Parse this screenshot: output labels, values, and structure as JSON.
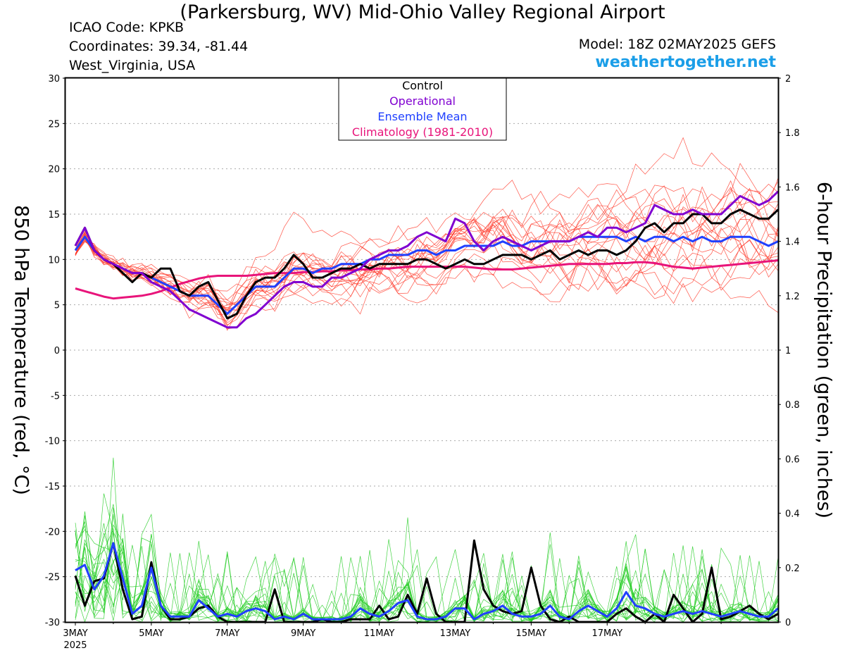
{
  "header": {
    "title": "(Parkersburg, WV) Mid-Ohio Valley Regional Airport",
    "icao": "ICAO Code: KPKB",
    "coordinates": "Coordinates: 39.34, -81.44",
    "region": "West_Virginia, USA",
    "model": "Model: 18Z 02MAY2025 GEFS",
    "site": "weathertogether.net"
  },
  "colors": {
    "control": "#000000",
    "operational": "#8000d0",
    "ensemble_mean": "#2040ff",
    "climatology": "#e8147a",
    "members_temp": "#ff3a2a",
    "members_precip": "#22cc22",
    "site": "#1a9ee8"
  },
  "chart_data": {
    "type": "line",
    "ylabel_left": "850 hPa Temperature (red, °C)",
    "ylabel_right": "6-hour Precipitation (green, inches)",
    "ylim_left": [
      -30,
      30
    ],
    "ylim_right": [
      0,
      2
    ],
    "yticks_left": [
      "30",
      "25",
      "20",
      "15",
      "10",
      "5",
      "0",
      "-5",
      "-10",
      "-15",
      "-20",
      "-25",
      "-30"
    ],
    "yticks_right": [
      "2",
      "1.8",
      "1.6",
      "1.4",
      "1.2",
      "1",
      "0.8",
      "0.6",
      "0.4",
      "0.2",
      "0"
    ],
    "xticks": [
      "3MAY",
      "5MAY",
      "7MAY",
      "9MAY",
      "11MAY",
      "13MAY",
      "15MAY",
      "17MAY"
    ],
    "xtick_sub": "2025",
    "x_start": "2025-05-03 00Z",
    "step_hours": 6,
    "legend": [
      "Control",
      "Operational",
      "Ensemble Mean",
      "Climatology (1981-2010)"
    ],
    "legend_placement": "top-center",
    "grid": true,
    "series": [
      {
        "name": "Control",
        "axis": "temperature",
        "values": [
          11.5,
          13.5,
          11,
          10,
          9.5,
          8.5,
          7.5,
          8.5,
          8,
          9,
          9,
          6.5,
          6,
          7,
          7.5,
          5.5,
          3.5,
          4,
          6,
          7.5,
          8,
          8,
          9,
          10.5,
          9.5,
          8,
          8,
          8.5,
          9,
          9,
          9.5,
          9,
          9.5,
          9.5,
          9.5,
          9.5,
          10,
          10,
          9.5,
          9,
          9.5,
          10,
          9.5,
          9.5,
          10,
          10.5,
          10.5,
          10.5,
          10,
          10.5,
          11,
          10,
          10.5,
          11,
          10.5,
          11,
          11,
          10.5,
          11,
          12,
          13.5,
          14,
          13,
          14,
          14,
          15,
          15,
          14,
          14,
          15,
          15.5,
          15,
          14.5,
          14.5,
          15.5
        ]
      },
      {
        "name": "Operational",
        "axis": "temperature",
        "values": [
          11.5,
          13.5,
          11,
          10,
          9.5,
          9,
          8.5,
          8.5,
          7.5,
          7,
          6.5,
          5.5,
          4.5,
          4,
          3.5,
          3,
          2.5,
          2.5,
          3.5,
          4,
          5,
          6,
          7,
          7.5,
          7.5,
          7,
          7,
          8,
          8,
          8.5,
          9,
          10,
          10.5,
          11,
          11,
          11.5,
          12.5,
          13,
          12.5,
          12,
          14.5,
          14,
          12,
          11,
          12,
          12.5,
          12,
          11.5,
          11,
          11.5,
          12,
          12,
          12,
          12.5,
          13,
          12.5,
          13.5,
          13.5,
          13,
          13.5,
          14,
          16,
          15.5,
          15,
          15,
          15.5,
          15,
          15,
          15,
          16,
          17,
          16.5,
          16,
          16.5,
          17.5
        ]
      },
      {
        "name": "Ensemble Mean",
        "axis": "temperature",
        "values": [
          11,
          12.5,
          11,
          10,
          9.5,
          9,
          8.5,
          8.5,
          8,
          7.5,
          7,
          6.5,
          6,
          6,
          6,
          5,
          4,
          5,
          6,
          7,
          7,
          7,
          8,
          9,
          9,
          8.5,
          9,
          9,
          9.5,
          9.5,
          9.5,
          10,
          10,
          10.5,
          10.5,
          10.5,
          11,
          11,
          10.5,
          11,
          11,
          11.5,
          11.5,
          11.5,
          11.5,
          12,
          11.5,
          11.5,
          12,
          12,
          12,
          12,
          12,
          12.5,
          12.5,
          12.5,
          12.5,
          12.5,
          12,
          12.5,
          12,
          12.5,
          12.5,
          12,
          12.5,
          12,
          12.5,
          12,
          12,
          12.5,
          12.5,
          12.5,
          12,
          11.5,
          12
        ]
      },
      {
        "name": "Climatology (1981-2010)",
        "axis": "temperature",
        "values": [
          6.8,
          6.5,
          6.2,
          5.9,
          5.7,
          5.8,
          5.9,
          6,
          6.2,
          6.5,
          6.9,
          7.3,
          7.6,
          7.9,
          8.1,
          8.2,
          8.2,
          8.2,
          8.2,
          8.3,
          8.4,
          8.5,
          8.5,
          8.5,
          8.6,
          8.6,
          8.7,
          8.7,
          8.8,
          8.8,
          8.9,
          8.9,
          9,
          9,
          9.1,
          9.2,
          9.2,
          9.2,
          9.2,
          9.2,
          9.2,
          9.2,
          9.1,
          9,
          8.9,
          8.9,
          8.9,
          9,
          9.1,
          9.2,
          9.3,
          9.4,
          9.5,
          9.5,
          9.5,
          9.5,
          9.5,
          9.6,
          9.6,
          9.7,
          9.7,
          9.6,
          9.4,
          9.2,
          9.1,
          9,
          9.1,
          9.2,
          9.3,
          9.4,
          9.5,
          9.6,
          9.7,
          9.8,
          9.9
        ]
      },
      {
        "name": "Control",
        "axis": "precipitation",
        "values": [
          0.17,
          0.06,
          0.15,
          0.16,
          0.29,
          0.12,
          0.01,
          0.02,
          0.22,
          0.06,
          0.01,
          0.01,
          0.02,
          0.05,
          0.06,
          0.02,
          0,
          0,
          0,
          0,
          0,
          0.12,
          0,
          0,
          0,
          0,
          0.01,
          0,
          0,
          0.01,
          0.01,
          0.01,
          0.06,
          0.01,
          0.02,
          0.1,
          0.03,
          0.16,
          0.03,
          0,
          0,
          0,
          0.3,
          0.12,
          0.06,
          0.04,
          0.03,
          0.04,
          0.2,
          0.06,
          0.01,
          0,
          0.02,
          0,
          0,
          0,
          0,
          0.03,
          0.05,
          0.02,
          0,
          0.03,
          0,
          0.1,
          0.05,
          0,
          0.03,
          0.2,
          0.01,
          0.02,
          0.04,
          0.06,
          0.03,
          0.01,
          0.03
        ]
      },
      {
        "name": "Ensemble Mean",
        "axis": "precipitation",
        "values": [
          0.19,
          0.21,
          0.12,
          0.17,
          0.29,
          0.16,
          0.03,
          0.06,
          0.2,
          0.06,
          0.02,
          0.02,
          0.02,
          0.08,
          0.05,
          0.02,
          0.03,
          0.02,
          0.04,
          0.05,
          0.04,
          0.01,
          0.02,
          0.01,
          0.03,
          0.01,
          0.01,
          0.01,
          0.01,
          0.02,
          0.05,
          0.03,
          0.02,
          0.04,
          0.07,
          0.08,
          0.02,
          0.01,
          0.01,
          0.02,
          0.05,
          0.05,
          0.01,
          0.03,
          0.04,
          0.06,
          0.03,
          0.02,
          0.02,
          0.03,
          0.06,
          0.02,
          0.01,
          0.04,
          0.06,
          0.04,
          0.02,
          0.05,
          0.11,
          0.06,
          0.05,
          0.03,
          0.02,
          0.03,
          0.04,
          0.03,
          0.04,
          0.03,
          0.02,
          0.03,
          0.04,
          0.03,
          0.02,
          0.02,
          0.05
        ]
      }
    ]
  }
}
